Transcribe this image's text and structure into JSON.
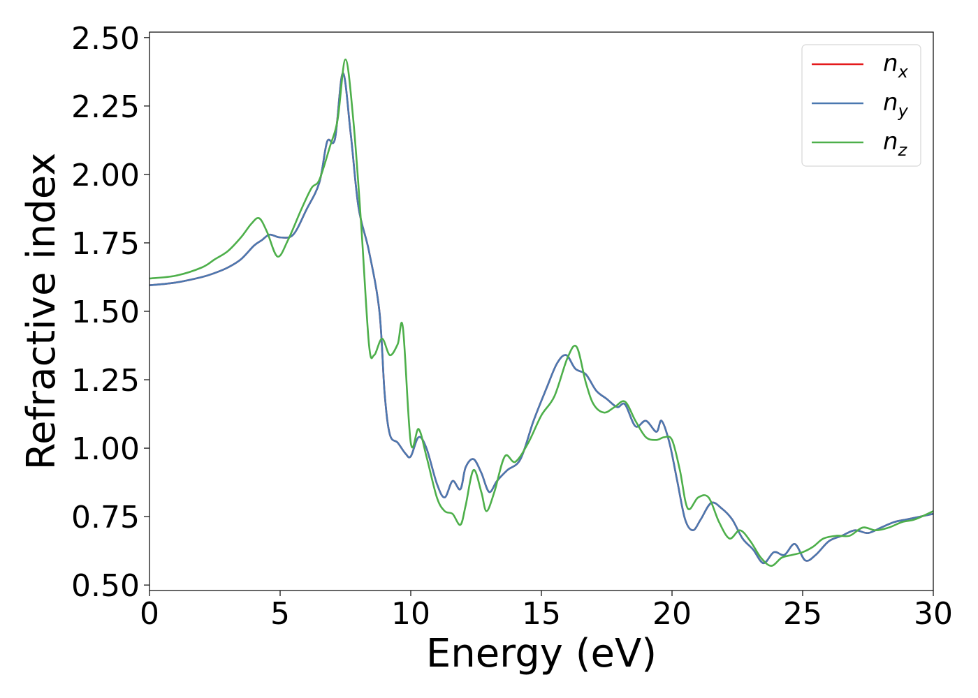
{
  "chart_data": {
    "type": "line",
    "xlabel": "Energy (eV)",
    "ylabel": "Refractive index",
    "xlim": [
      0,
      30
    ],
    "ylim": [
      0.48,
      2.52
    ],
    "xticks": [
      0,
      5,
      10,
      15,
      20,
      25,
      30
    ],
    "xtick_labels": [
      "0",
      "5",
      "10",
      "15",
      "20",
      "25",
      "30"
    ],
    "yticks": [
      0.5,
      0.75,
      1.0,
      1.25,
      1.5,
      1.75,
      2.0,
      2.25,
      2.5
    ],
    "ytick_labels": [
      "0.50",
      "0.75",
      "1.00",
      "1.25",
      "1.50",
      "1.75",
      "2.00",
      "2.25",
      "2.50"
    ],
    "grid": false,
    "legend_position": "top-right",
    "series": [
      {
        "name": "n_x",
        "legend_base": "n",
        "legend_sub": "x",
        "color": "#e41a1c",
        "x": [
          0,
          1,
          2,
          2.5,
          3,
          3.5,
          4,
          4.3,
          4.6,
          5,
          5.5,
          6,
          6.5,
          6.8,
          7.1,
          7.4,
          7.7,
          8,
          8.4,
          8.8,
          9.0,
          9.2,
          9.5,
          9.8,
          10,
          10.3,
          10.6,
          11,
          11.3,
          11.6,
          11.9,
          12.1,
          12.4,
          12.7,
          13,
          13.3,
          13.7,
          14.2,
          14.7,
          15.2,
          15.6,
          15.95,
          16.3,
          16.7,
          17.1,
          17.5,
          17.9,
          18.2,
          18.6,
          19.0,
          19.4,
          19.6,
          19.9,
          20.2,
          20.5,
          20.8,
          21.1,
          21.5,
          21.9,
          22.3,
          22.7,
          23.1,
          23.5,
          23.9,
          24.3,
          24.7,
          25.1,
          25.5,
          26.0,
          26.5,
          27.0,
          27.5,
          28.0,
          28.5,
          29.0,
          29.5,
          30
        ],
        "y": [
          1.595,
          1.605,
          1.625,
          1.64,
          1.66,
          1.69,
          1.74,
          1.76,
          1.78,
          1.77,
          1.78,
          1.87,
          1.97,
          2.12,
          2.13,
          2.37,
          2.15,
          1.88,
          1.72,
          1.5,
          1.2,
          1.05,
          1.02,
          0.98,
          0.97,
          1.04,
          1.0,
          0.87,
          0.82,
          0.88,
          0.85,
          0.93,
          0.96,
          0.91,
          0.84,
          0.88,
          0.92,
          0.96,
          1.1,
          1.22,
          1.31,
          1.34,
          1.29,
          1.27,
          1.21,
          1.18,
          1.15,
          1.16,
          1.08,
          1.1,
          1.06,
          1.1,
          1.02,
          0.88,
          0.74,
          0.7,
          0.74,
          0.8,
          0.78,
          0.74,
          0.67,
          0.63,
          0.58,
          0.62,
          0.61,
          0.65,
          0.59,
          0.61,
          0.66,
          0.68,
          0.7,
          0.69,
          0.71,
          0.73,
          0.74,
          0.75,
          0.76
        ]
      },
      {
        "name": "n_y",
        "legend_base": "n",
        "legend_sub": "y",
        "color": "#4a78b0",
        "x": [
          0,
          1,
          2,
          2.5,
          3,
          3.5,
          4,
          4.3,
          4.6,
          5,
          5.5,
          6,
          6.5,
          6.8,
          7.1,
          7.4,
          7.7,
          8,
          8.4,
          8.8,
          9.0,
          9.2,
          9.5,
          9.8,
          10,
          10.3,
          10.6,
          11,
          11.3,
          11.6,
          11.9,
          12.1,
          12.4,
          12.7,
          13,
          13.3,
          13.7,
          14.2,
          14.7,
          15.2,
          15.6,
          15.95,
          16.3,
          16.7,
          17.1,
          17.5,
          17.9,
          18.2,
          18.6,
          19.0,
          19.4,
          19.6,
          19.9,
          20.2,
          20.5,
          20.8,
          21.1,
          21.5,
          21.9,
          22.3,
          22.7,
          23.1,
          23.5,
          23.9,
          24.3,
          24.7,
          25.1,
          25.5,
          26.0,
          26.5,
          27.0,
          27.5,
          28.0,
          28.5,
          29.0,
          29.5,
          30
        ],
        "y": [
          1.595,
          1.605,
          1.625,
          1.64,
          1.66,
          1.69,
          1.74,
          1.76,
          1.78,
          1.77,
          1.78,
          1.87,
          1.97,
          2.12,
          2.13,
          2.37,
          2.15,
          1.88,
          1.72,
          1.5,
          1.2,
          1.05,
          1.02,
          0.98,
          0.97,
          1.04,
          1.0,
          0.87,
          0.82,
          0.88,
          0.85,
          0.93,
          0.96,
          0.91,
          0.84,
          0.88,
          0.92,
          0.96,
          1.1,
          1.22,
          1.31,
          1.34,
          1.29,
          1.27,
          1.21,
          1.18,
          1.15,
          1.16,
          1.08,
          1.1,
          1.06,
          1.1,
          1.02,
          0.88,
          0.74,
          0.7,
          0.74,
          0.8,
          0.78,
          0.74,
          0.67,
          0.63,
          0.58,
          0.62,
          0.61,
          0.65,
          0.59,
          0.61,
          0.66,
          0.68,
          0.7,
          0.69,
          0.71,
          0.73,
          0.74,
          0.75,
          0.76
        ]
      },
      {
        "name": "n_z",
        "legend_base": "n",
        "legend_sub": "z",
        "color": "#4daf4a",
        "x": [
          0,
          1,
          2,
          2.5,
          3,
          3.5,
          3.9,
          4.2,
          4.5,
          4.9,
          5.3,
          5.8,
          6.2,
          6.5,
          6.9,
          7.2,
          7.5,
          7.8,
          8.1,
          8.4,
          8.6,
          8.9,
          9.2,
          9.5,
          9.7,
          10.0,
          10.3,
          10.6,
          11.0,
          11.3,
          11.6,
          11.9,
          12.1,
          12.4,
          12.7,
          12.9,
          13.2,
          13.6,
          14.0,
          14.5,
          15.0,
          15.5,
          16.0,
          16.35,
          16.7,
          17.0,
          17.4,
          17.8,
          18.2,
          18.6,
          19.0,
          19.4,
          19.7,
          20.0,
          20.3,
          20.6,
          21.0,
          21.4,
          21.8,
          22.2,
          22.6,
          23.0,
          23.4,
          23.8,
          24.2,
          24.6,
          25.0,
          25.4,
          25.8,
          26.3,
          26.8,
          27.3,
          27.8,
          28.3,
          28.8,
          29.3,
          30
        ],
        "y": [
          1.62,
          1.63,
          1.66,
          1.69,
          1.72,
          1.77,
          1.82,
          1.84,
          1.79,
          1.7,
          1.76,
          1.87,
          1.95,
          1.98,
          2.1,
          2.2,
          2.42,
          2.2,
          1.82,
          1.38,
          1.34,
          1.4,
          1.34,
          1.38,
          1.44,
          1.02,
          1.07,
          0.97,
          0.82,
          0.77,
          0.76,
          0.72,
          0.79,
          0.92,
          0.84,
          0.77,
          0.84,
          0.97,
          0.95,
          1.02,
          1.12,
          1.19,
          1.33,
          1.37,
          1.24,
          1.16,
          1.13,
          1.15,
          1.17,
          1.1,
          1.04,
          1.03,
          1.04,
          1.03,
          0.92,
          0.78,
          0.82,
          0.82,
          0.73,
          0.67,
          0.7,
          0.66,
          0.6,
          0.57,
          0.6,
          0.61,
          0.62,
          0.64,
          0.67,
          0.68,
          0.68,
          0.71,
          0.7,
          0.71,
          0.73,
          0.74,
          0.77
        ]
      }
    ]
  }
}
